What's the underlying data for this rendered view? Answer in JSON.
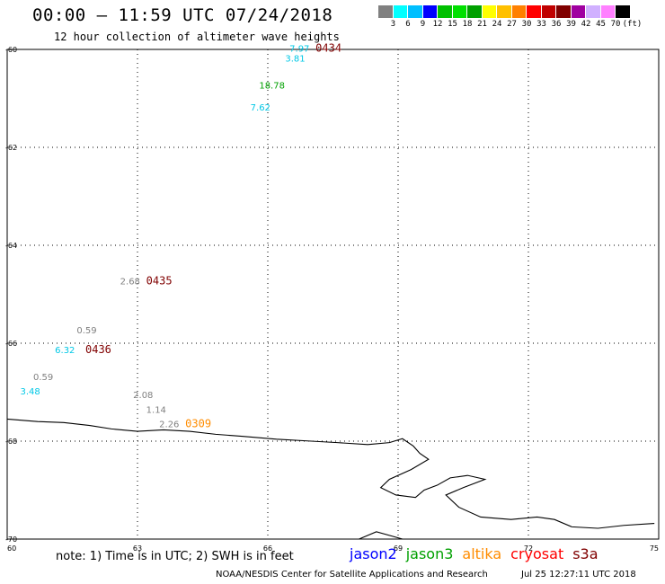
{
  "header": {
    "title": "00:00 – 11:59 UTC 07/24/2018",
    "subtitle": "12 hour collection of altimeter wave heights"
  },
  "legend": {
    "unit": "(ft)",
    "colors": [
      "#808080",
      "#00ffff",
      "#00bfff",
      "#0000ff",
      "#00c000",
      "#00e000",
      "#00a000",
      "#ffff00",
      "#ffc000",
      "#ff8000",
      "#ff0000",
      "#c00000",
      "#800000",
      "#a000a0",
      "#d0b0ff",
      "#ff80ff",
      "#000000"
    ],
    "labels": [
      "3",
      "6",
      "9",
      "12",
      "15",
      "18",
      "21",
      "24",
      "27",
      "30",
      "33",
      "36",
      "39",
      "42",
      "45",
      "70"
    ]
  },
  "map": {
    "lat_ticks": [
      "-60",
      "-62",
      "-64",
      "-66",
      "-68",
      "-70"
    ],
    "lon_ticks": [
      "60",
      "63",
      "66",
      "69",
      "72",
      "75"
    ],
    "wave_heights": [
      {
        "text": "7.97",
        "lon": 66.5,
        "lat": -60.05,
        "color": "#00c8e6"
      },
      {
        "text": "3.81",
        "lon": 66.4,
        "lat": -60.25,
        "color": "#00c8e6"
      },
      {
        "text": "18.78",
        "lon": 65.8,
        "lat": -60.8,
        "color": "#00a000"
      },
      {
        "text": "7.62",
        "lon": 65.6,
        "lat": -61.25,
        "color": "#00c8e6"
      },
      {
        "text": "2.68",
        "lon": 62.6,
        "lat": -64.8,
        "color": "#808080"
      },
      {
        "text": "0.59",
        "lon": 61.6,
        "lat": -65.8,
        "color": "#808080"
      },
      {
        "text": "6.32",
        "lon": 61.1,
        "lat": -66.2,
        "color": "#00c8e6"
      },
      {
        "text": "0.59",
        "lon": 60.6,
        "lat": -66.75,
        "color": "#808080"
      },
      {
        "text": "3.48",
        "lon": 60.3,
        "lat": -67.05,
        "color": "#00c8e6"
      },
      {
        "text": "2.08",
        "lon": 62.9,
        "lat": -67.12,
        "color": "#808080"
      },
      {
        "text": "1.14",
        "lon": 63.2,
        "lat": -67.42,
        "color": "#808080"
      },
      {
        "text": "2.26",
        "lon": 63.5,
        "lat": -67.72,
        "color": "#808080"
      }
    ],
    "pass_times": [
      {
        "text": "0434",
        "lon": 67.1,
        "lat": -60.05,
        "color": "#800000"
      },
      {
        "text": "0435",
        "lon": 63.2,
        "lat": -64.8,
        "color": "#800000"
      },
      {
        "text": "0436",
        "lon": 61.8,
        "lat": -66.2,
        "color": "#800000"
      },
      {
        "text": "0309",
        "lon": 64.1,
        "lat": -67.72,
        "color": "#ff8c00"
      }
    ]
  },
  "footer": {
    "note": "note: 1) Time is in UTC; 2) SWH is in feet",
    "satellites": [
      {
        "name": "jason2",
        "color": "#0000ff"
      },
      {
        "name": "jason3",
        "color": "#00a000"
      },
      {
        "name": "altika",
        "color": "#ff8c00"
      },
      {
        "name": "cryosat",
        "color": "#ff0000"
      },
      {
        "name": "s3a",
        "color": "#800000"
      }
    ],
    "credit": "NOAA/NESDIS Center for Satellite Applications and Research",
    "timestamp": "Jul 25 12:27:11 UTC 2018"
  }
}
